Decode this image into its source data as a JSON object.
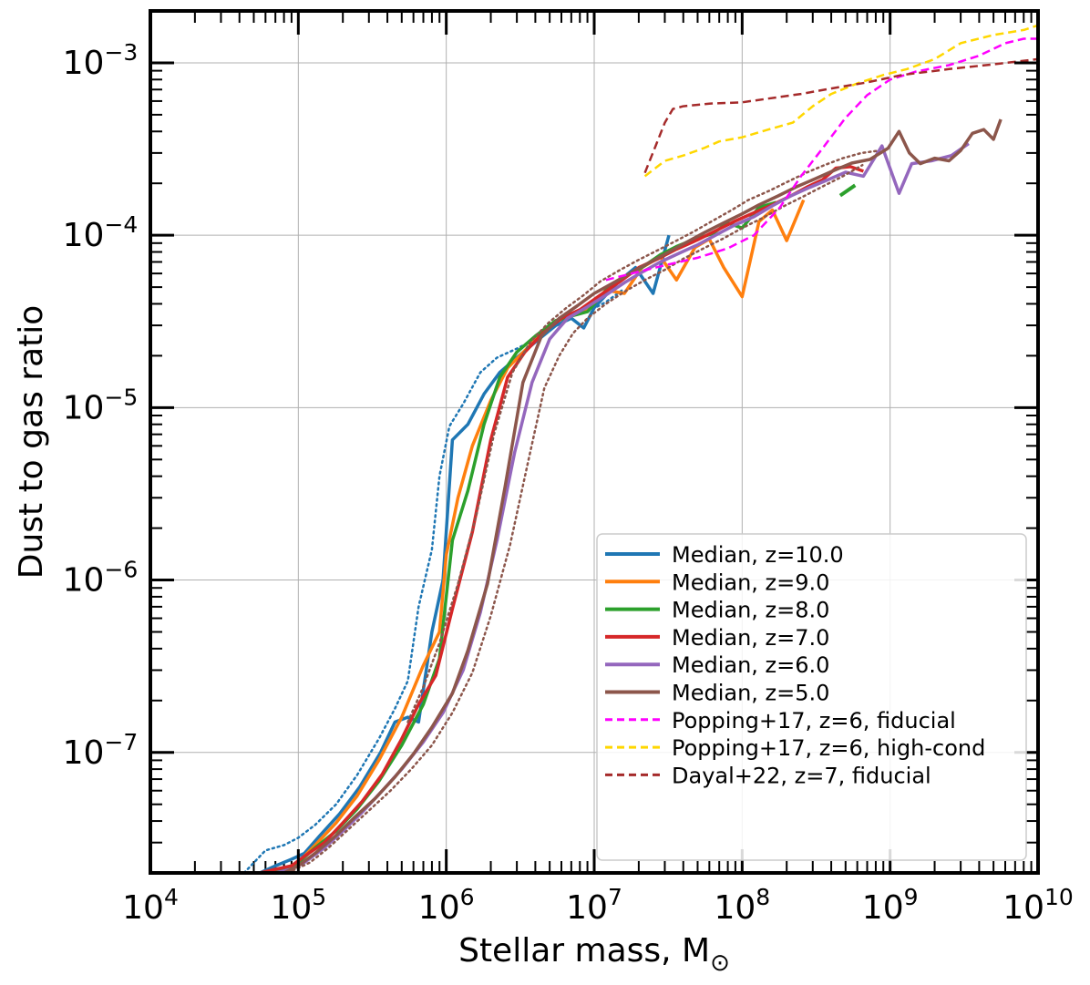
{
  "chart_data": {
    "type": "line",
    "xscale": "log",
    "yscale": "log",
    "xlabel": "Stellar mass, M",
    "xlabel_sub": "⊙",
    "ylabel": "Dust to gas ratio",
    "xlim": [
      10000,
      10000000000
    ],
    "ylim": [
      2e-08,
      0.002
    ],
    "grid": true,
    "legend_position": "lower-right",
    "x_ticks": [
      {
        "value": 10000,
        "base": "10",
        "exp": "4"
      },
      {
        "value": 100000,
        "base": "10",
        "exp": "5"
      },
      {
        "value": 1000000,
        "base": "10",
        "exp": "6"
      },
      {
        "value": 10000000,
        "base": "10",
        "exp": "7"
      },
      {
        "value": 100000000,
        "base": "10",
        "exp": "8"
      },
      {
        "value": 1000000000,
        "base": "10",
        "exp": "9"
      },
      {
        "value": 10000000000,
        "base": "10",
        "exp": "10"
      }
    ],
    "y_ticks": [
      {
        "value": 1e-07,
        "base": "10",
        "exp": "−7"
      },
      {
        "value": 1e-06,
        "base": "10",
        "exp": "−6"
      },
      {
        "value": 1e-05,
        "base": "10",
        "exp": "−5"
      },
      {
        "value": 0.0001,
        "base": "10",
        "exp": "−4"
      },
      {
        "value": 0.001,
        "base": "10",
        "exp": "−3"
      }
    ],
    "series": [
      {
        "name": "z10_p16",
        "label": null,
        "color": "#1f77b4",
        "style": "dotted",
        "width": 2.5,
        "x": [
          43000.0,
          60000.0,
          80000.0,
          100000.0,
          130000.0,
          180000.0,
          250000.0,
          350000.0,
          450000.0,
          550000.0,
          650000.0,
          800000.0,
          900000.0,
          1050000.0,
          1300000.0,
          1700000.0,
          2200000.0,
          3000000.0,
          4000000.0,
          5500000.0,
          7000000.0,
          9000000.0,
          12000000.0,
          16000000.0
        ],
        "y": [
          2e-08,
          2.7e-08,
          2.9e-08,
          3.2e-08,
          3.8e-08,
          5e-08,
          7.4e-08,
          1.2e-07,
          1.8e-07,
          2.6e-07,
          7e-07,
          1.5e-06,
          4e-06,
          7.8e-06,
          1.05e-05,
          1.6e-05,
          1.95e-05,
          2.2e-05,
          2.5e-05,
          3.1e-05,
          3.4e-05,
          3.6e-05,
          4.1e-05,
          4.9e-05
        ]
      },
      {
        "name": "z10_median",
        "label": "Median, z=10.0",
        "color": "#1f77b4",
        "style": "solid",
        "width": 3.5,
        "x": [
          55000.0,
          70000.0,
          90000.0,
          110000.0,
          140000.0,
          190000.0,
          260000.0,
          360000.0,
          450000.0,
          550000.0,
          650000.0,
          800000.0,
          950000.0,
          1100000.0,
          1400000.0,
          1800000.0,
          2300000.0,
          3000000.0,
          4000000.0,
          5500000.0,
          7000000.0,
          8500000.0,
          10000000.0,
          12000000.0,
          15000000.0,
          19000000.0,
          25000000.0,
          32000000.0
        ],
        "y": [
          2e-08,
          2.2e-08,
          2.4e-08,
          2.6e-08,
          3.3e-08,
          4.4e-08,
          6.3e-08,
          1e-07,
          1.5e-07,
          1.6e-07,
          1.5e-07,
          5e-07,
          1e-06,
          6.5e-06,
          8e-06,
          1.2e-05,
          1.6e-05,
          1.95e-05,
          2.4e-05,
          3e-05,
          3.3e-05,
          2.9e-05,
          3.8e-05,
          4.5e-05,
          5.5e-05,
          6.5e-05,
          4.6e-05,
          0.0001
        ]
      },
      {
        "name": "z9_median",
        "label": "Median, z=9.0",
        "color": "#ff7f0e",
        "style": "solid",
        "width": 3.5,
        "x": [
          65000.0,
          80000.0,
          100000.0,
          130000.0,
          180000.0,
          250000.0,
          350000.0,
          500000.0,
          700000.0,
          900000.0,
          1000000.0,
          1200000.0,
          1500000.0,
          2000000.0,
          2600000.0,
          3500000.0,
          5000000.0,
          7000000.0,
          9000000.0,
          12000000.0,
          16000000.0,
          21000000.0,
          28000000.0,
          36000000.0,
          48000000.0,
          60000000.0,
          75000000.0,
          100000000.0,
          130000000.0,
          160000000.0,
          200000000.0,
          260000000.0
        ],
        "y": [
          2e-08,
          2.1e-08,
          2.3e-08,
          2.9e-08,
          3.9e-08,
          5.6e-08,
          9e-08,
          1.6e-07,
          3.2e-07,
          5e-07,
          1.4e-06,
          3e-06,
          6e-06,
          1.1e-05,
          1.7e-05,
          2.2e-05,
          3e-05,
          3.5e-05,
          3.7e-05,
          4.8e-05,
          4.6e-05,
          6.5e-05,
          7.5e-05,
          5.5e-05,
          8.5e-05,
          9.5e-05,
          6.5e-05,
          4.4e-05,
          0.00012,
          0.00014,
          9.3e-05,
          0.00016
        ]
      },
      {
        "name": "z8_median",
        "label": "Median, z=8.0",
        "color": "#2ca02c",
        "style": "solid",
        "width": 3.5,
        "x": [
          60000.0,
          80000.0,
          100000.0,
          130000.0,
          180000.0,
          250000.0,
          350000.0,
          500000.0,
          700000.0,
          900000.0,
          1100000.0,
          1400000.0,
          1800000.0,
          2300000.0,
          3000000.0,
          4000000.0,
          5500000.0,
          7000000.0,
          9000000.0,
          12000000.0,
          16000000.0,
          21000000.0,
          28000000.0,
          36000000.0,
          48000000.0,
          63000000.0,
          80000000.0,
          100000000.0,
          130000000.0,
          170000000.0
        ],
        "y": [
          2e-08,
          2.1e-08,
          2.3e-08,
          2.8e-08,
          3.5e-08,
          4.7e-08,
          6.8e-08,
          1.1e-07,
          1.9e-07,
          3.5e-07,
          1.7e-06,
          3.3e-06,
          8e-06,
          1.5e-05,
          2.1e-05,
          2.6e-05,
          3.2e-05,
          3.4e-05,
          3.6e-05,
          4.8e-05,
          5.7e-05,
          6.5e-05,
          7.7e-05,
          8.6e-05,
          9.5e-05,
          0.000102,
          0.000118,
          0.00011,
          0.000145,
          0.000155
        ]
      },
      {
        "name": "z8_tail",
        "label": null,
        "color": "#2ca02c",
        "style": "solid",
        "width": 4,
        "x": [
          460000000.0,
          580000000.0
        ],
        "y": [
          0.00017,
          0.000195
        ]
      },
      {
        "name": "z7_median",
        "label": "Median, z=7.0",
        "color": "#d62728",
        "style": "solid",
        "width": 3.5,
        "x": [
          55000.0,
          70000.0,
          90000.0,
          110000.0,
          150000.0,
          200000.0,
          270000.0,
          370000.0,
          500000.0,
          650000.0,
          850000.0,
          1100000.0,
          1500000.0,
          2000000.0,
          2600000.0,
          3400000.0,
          4500000.0,
          6000000.0,
          8000000.0,
          11000000.0,
          15000000.0,
          20000000.0,
          27000000.0,
          36000000.0,
          50000000.0,
          66000000.0,
          90000000.0,
          120000000.0,
          160000000.0,
          210000000.0,
          280000000.0,
          350000000.0,
          430000000.0,
          540000000.0,
          660000000.0
        ],
        "y": [
          2e-08,
          2.1e-08,
          2.2e-08,
          2.5e-08,
          3e-08,
          3.9e-08,
          5.2e-08,
          7.5e-08,
          1.2e-07,
          1.9e-07,
          2.8e-07,
          6.8e-07,
          1.9e-06,
          6.5e-06,
          1.5e-05,
          2.1e-05,
          2.7e-05,
          3.3e-05,
          3.7e-05,
          4.5e-05,
          5.4e-05,
          6.5e-05,
          7.3e-05,
          8.3e-05,
          9.4e-05,
          0.000106,
          0.000121,
          0.000135,
          0.00015,
          0.000168,
          0.000192,
          0.00021,
          0.000245,
          0.00025,
          0.000235
        ]
      },
      {
        "name": "z6_median",
        "label": "Median, z=6.0",
        "color": "#9467bd",
        "style": "solid",
        "width": 3.5,
        "x": [
          70000.0,
          90000.0,
          110000.0,
          150000.0,
          200000.0,
          270000.0,
          370000.0,
          500000.0,
          700000.0,
          950000.0,
          1300000.0,
          1700000.0,
          2200000.0,
          2900000.0,
          3800000.0,
          5000000.0,
          6600000.0,
          8800000.0,
          12000000.0,
          16000000.0,
          21000000.0,
          28000000.0,
          38000000.0,
          50000000.0,
          66000000.0,
          88000000.0,
          120000000.0,
          160000000.0,
          210000000.0,
          280000000.0,
          380000000.0,
          500000000.0,
          660000000.0,
          880000000.0,
          1150000000.0,
          1400000000.0,
          1900000000.0,
          2600000000.0,
          3400000000.0
        ],
        "y": [
          2e-08,
          2.1e-08,
          2.3e-08,
          2.8e-08,
          3.5e-08,
          4.5e-08,
          6e-08,
          8e-08,
          1.15e-07,
          1.7e-07,
          3e-07,
          6.5e-07,
          1.7e-06,
          5.5e-06,
          1.4e-05,
          2.5e-05,
          3.3e-05,
          3.8e-05,
          4.5e-05,
          5.3e-05,
          6.1e-05,
          7e-05,
          7.9e-05,
          8.8e-05,
          0.0001,
          0.000114,
          0.000128,
          0.000148,
          0.000168,
          0.000188,
          0.00021,
          0.000232,
          0.00022,
          0.00033,
          0.000175,
          0.00026,
          0.00027,
          0.00029,
          0.00034
        ]
      },
      {
        "name": "z5_p16",
        "label": null,
        "color": "#8c564b",
        "style": "dotted",
        "width": 2.5,
        "x": [
          85000.0,
          120000.0,
          160000.0,
          220000.0,
          300000.0,
          420000.0,
          580000.0,
          800000.0,
          1100000.0,
          1500000.0,
          2000000.0,
          2700000.0,
          3600000.0,
          4600000.0,
          5800000.0,
          7200000.0,
          9000000.0,
          12000000.0,
          16000000.0,
          22000000.0,
          30000000.0,
          40000000.0,
          55000000.0,
          75000000.0,
          100000000.0,
          140000000.0,
          190000000.0,
          260000000.0,
          350000000.0,
          480000000.0,
          650000000.0
        ],
        "y": [
          2e-08,
          2.3e-08,
          2.8e-08,
          3.6e-08,
          4.6e-08,
          6e-08,
          8e-08,
          1.1e-07,
          1.7e-07,
          2.9e-07,
          6.2e-07,
          1.6e-06,
          5e-06,
          1.3e-05,
          2e-05,
          2.7e-05,
          3.3e-05,
          4e-05,
          4.7e-05,
          5.5e-05,
          6.3e-05,
          7.3e-05,
          8.4e-05,
          9.6e-05,
          0.00011,
          0.000127,
          0.000147,
          0.000168,
          0.000192,
          0.00022,
          0.000255
        ]
      },
      {
        "name": "z5_p84",
        "label": null,
        "color": "#8c564b",
        "style": "dotted",
        "width": 2.5,
        "x": [
          550000.0,
          700000.0,
          900000.0,
          1200000.0,
          1600000.0,
          2100000.0,
          2800000.0,
          3700000.0,
          4900000.0,
          6500000.0,
          8500000.0,
          11000000.0,
          15000000.0,
          20000000.0,
          27000000.0,
          36000000.0,
          48000000.0,
          64000000.0,
          85000000.0,
          110000000.0,
          150000000.0,
          200000000.0,
          270000000.0,
          360000000.0,
          480000000.0,
          640000000.0,
          850000000.0
        ],
        "y": [
          1.5e-07,
          2.4e-07,
          4.3e-07,
          9.5e-07,
          2.4e-06,
          7e-06,
          1.6e-05,
          2.4e-05,
          3.1e-05,
          3.8e-05,
          4.5e-05,
          5.4e-05,
          6.3e-05,
          7.2e-05,
          8.2e-05,
          9.3e-05,
          0.000106,
          0.000122,
          0.00014,
          0.00016,
          0.00018,
          0.000203,
          0.00023,
          0.000255,
          0.00028,
          0.0003,
          0.00031
        ]
      },
      {
        "name": "z5_median",
        "label": "Median, z=5.0",
        "color": "#8c564b",
        "style": "solid",
        "width": 3.5,
        "x": [
          80000.0,
          100000.0,
          130000.0,
          180000.0,
          240000.0,
          330000.0,
          450000.0,
          600000.0,
          800000.0,
          1100000.0,
          1400000.0,
          1900000.0,
          2500000.0,
          3300000.0,
          4400000.0,
          5800000.0,
          7700000.0,
          10000000.0,
          13500000.0,
          18000000.0,
          24000000.0,
          32000000.0,
          42000000.0,
          56000000.0,
          75000000.0,
          100000000.0,
          130000000.0,
          175000000.0,
          230000000.0,
          310000000.0,
          410000000.0,
          550000000.0,
          730000000.0,
          970000000.0,
          1150000000.0,
          1350000000.0,
          1600000000.0,
          2000000000.0,
          2500000000.0,
          3000000000.0,
          3600000000.0,
          4300000000.0,
          5000000000.0,
          5600000000.0
        ],
        "y": [
          2e-08,
          2.2e-08,
          2.6e-08,
          3.3e-08,
          4.2e-08,
          5.4e-08,
          7.2e-08,
          9.8e-08,
          1.4e-07,
          2.2e-07,
          3.9e-07,
          9.5e-07,
          3.5e-06,
          1.4e-05,
          2.6e-05,
          3.3e-05,
          3.9e-05,
          4.6e-05,
          5.3e-05,
          6.1e-05,
          7e-05,
          8e-05,
          9.1e-05,
          0.000104,
          0.000118,
          0.000133,
          0.00015,
          0.000169,
          0.00019,
          0.000212,
          0.000236,
          0.000262,
          0.000275,
          0.00032,
          0.0004,
          0.0003,
          0.00026,
          0.00028,
          0.00027,
          0.00031,
          0.00039,
          0.00041,
          0.00036,
          0.00047
        ]
      },
      {
        "name": "popping_fid",
        "label": "Popping+17, z=6, fiducial",
        "color": "#ff00ff",
        "style": "dashed",
        "width": 2.5,
        "x": [
          12000000.0,
          18000000.0,
          30000000.0,
          50000000.0,
          80000000.0,
          120000000.0,
          180000000.0,
          250000000.0,
          350000000.0,
          500000000.0,
          700000000.0,
          1000000000.0,
          1500000000.0,
          2500000000.0,
          4000000000.0,
          6000000000.0,
          8000000000.0,
          10000000000.0
        ],
        "y": [
          5.5e-05,
          6e-05,
          6.7e-05,
          7.4e-05,
          8.4e-05,
          0.0001,
          0.000145,
          0.00022,
          0.00032,
          0.00048,
          0.00065,
          0.0008,
          0.00089,
          0.00097,
          0.0011,
          0.0013,
          0.00138,
          0.00138
        ]
      },
      {
        "name": "popping_hc",
        "label": "Popping+17, z=6, high-cond",
        "color": "#ffd700",
        "style": "dashed",
        "width": 2.5,
        "x": [
          22000000.0,
          30000000.0,
          40000000.0,
          55000000.0,
          70000000.0,
          100000000.0,
          150000000.0,
          220000000.0,
          300000000.0,
          400000000.0,
          600000000.0,
          900000000.0,
          1300000000.0,
          2000000000.0,
          3000000000.0,
          5000000000.0,
          8000000000.0,
          10000000000.0
        ],
        "y": [
          0.00022,
          0.00027,
          0.00029,
          0.00032,
          0.00035,
          0.00037,
          0.00041,
          0.00045,
          0.00056,
          0.00066,
          0.00076,
          0.00085,
          0.00092,
          0.00105,
          0.0013,
          0.00145,
          0.00155,
          0.00165
        ]
      },
      {
        "name": "dayal",
        "label": "Dayal+22, z=7, fiducial",
        "color": "#a52a2a",
        "style": "dashed",
        "width": 2.5,
        "x": [
          22000000.0,
          26000000.0,
          30000000.0,
          34000000.0,
          40000000.0,
          60000000.0,
          100000000.0,
          150000000.0,
          250000000.0,
          400000000.0,
          700000000.0,
          1200000000.0,
          2500000000.0,
          5000000000.0,
          10000000000.0
        ],
        "y": [
          0.00023,
          0.00033,
          0.00045,
          0.00054,
          0.00056,
          0.00058,
          0.00059,
          0.00062,
          0.00066,
          0.00071,
          0.00077,
          0.00085,
          0.00092,
          0.00098,
          0.00105
        ]
      }
    ]
  }
}
